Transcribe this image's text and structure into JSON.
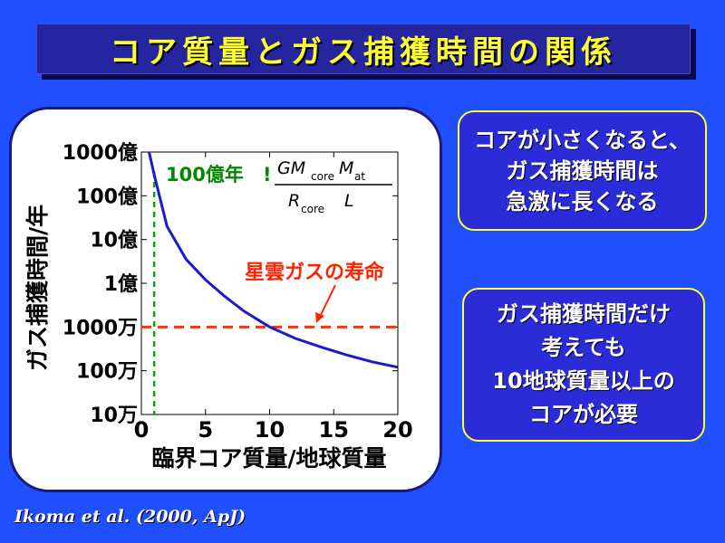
{
  "title": "コア質量とガス捕獲時間の関係",
  "chart_data": {
    "type": "line",
    "xlabel": "臨界コア質量/地球質量",
    "ylabel": "ガス捕獲時間/年",
    "x_ticks": [
      "0",
      "5",
      "10",
      "15",
      "20"
    ],
    "y_ticks": [
      "10万",
      "100万",
      "1000万",
      "1億",
      "10億",
      "100億",
      "1000億"
    ],
    "xlim": [
      0,
      20
    ],
    "ylim_years": [
      100000,
      100000000000
    ],
    "y_scale": "log",
    "series": [
      {
        "x": [
          0.6,
          1.0,
          2.0,
          3.5,
          5.0,
          6.5,
          8.0,
          10.0,
          12.0,
          14.0,
          16.0,
          18.0,
          20.0
        ],
        "y": [
          100000000000,
          30000000000,
          2000000000,
          350000000,
          120000000,
          50000000,
          23000000,
          10000000,
          5500000,
          3500000,
          2300000,
          1600000,
          1200000
        ]
      }
    ],
    "ref_line_vertical_x": 1,
    "ref_line_horizontal_y": 10000000,
    "annotations": {
      "label_100oku": "100億年",
      "label_nebula": "星雲ガスの寿命",
      "formula_num_base": "GM",
      "formula_num_sub1": "core",
      "formula_num_M": "M",
      "formula_num_sub2": "at",
      "formula_den_base": "R",
      "formula_den_sub": "core",
      "formula_den_L": "L"
    },
    "colors": {
      "curve": "#1a1acc",
      "vertical_ref": "#00aa00",
      "horizontal_ref": "#ff3300",
      "label_100oku": "#008800",
      "label_nebula": "#ff2200"
    }
  },
  "callouts": [
    {
      "lines": [
        "コアが小さくなると、",
        "ガス捕獲時間は",
        "急激に長くなる"
      ]
    },
    {
      "lines": [
        "ガス捕獲時間だけ",
        "考えても",
        "10地球質量以上の",
        "コアが必要"
      ]
    }
  ],
  "citation": "Ikoma et al. (2000, ApJ)"
}
